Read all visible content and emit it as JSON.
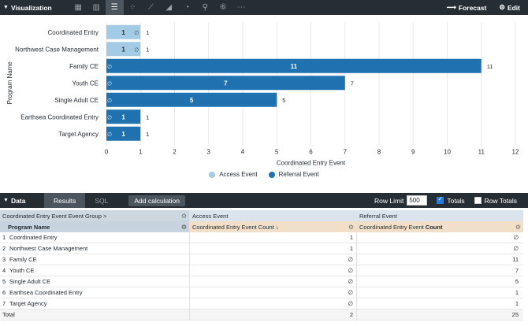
{
  "viz_header": {
    "title": "Visualization",
    "icons": [
      "table-icon",
      "bar-chart-icon",
      "horizontal-bar-icon",
      "scatter-icon",
      "line-icon",
      "area-icon",
      "pie-icon",
      "map-pin-icon",
      "single-value-icon",
      "more-icon"
    ],
    "forecast_label": "Forecast",
    "edit_label": "Edit"
  },
  "chart_data": {
    "type": "bar",
    "orientation": "horizontal",
    "stacked": true,
    "categories": [
      "Coordinated Entry",
      "Northwest Case Management",
      "Family CE",
      "Youth CE",
      "Single Adult CE",
      "Earthsea Coordinated Entry",
      "Target Agency"
    ],
    "series": [
      {
        "name": "Access Event",
        "values": [
          1,
          1,
          0,
          0,
          0,
          0,
          0
        ],
        "color": "#a4cbe6"
      },
      {
        "name": "Referral Event",
        "values": [
          0,
          0,
          11,
          7,
          5,
          1,
          1
        ],
        "color": "#1f71b0"
      }
    ],
    "totals": [
      1,
      1,
      11,
      7,
      5,
      1,
      1
    ],
    "inner_labels": [
      "1",
      "1",
      "11",
      "7",
      "5",
      "1",
      "1"
    ],
    "end_labels": [
      "1",
      "1",
      "11",
      "7",
      "5",
      "1",
      "1"
    ],
    "empty_marker": "∅",
    "xlabel": "Coordinated Entry Event",
    "ylabel": "Program Name",
    "xlim": [
      0,
      12
    ],
    "xticks": [
      "0",
      "1",
      "2",
      "3",
      "4",
      "5",
      "6",
      "7",
      "8",
      "9",
      "10",
      "11",
      "12"
    ],
    "grid": true,
    "legend": "bottom-center"
  },
  "data_header": {
    "title": "Data",
    "tabs": [
      "Results",
      "SQL"
    ],
    "add_calc_label": "Add calculation",
    "row_limit_label": "Row Limit",
    "row_limit_value": "500",
    "totals_label": "Totals",
    "row_totals_label": "Row Totals"
  },
  "table": {
    "group_header": "Coordinated Entry Event Event Group",
    "group_caret": ">",
    "pivot_a": "Access Event",
    "pivot_r": "Referral Event",
    "dim_header": "Program Name",
    "measure_a_header": "Coordinated Entry Event Count ↓",
    "measure_r_header_prefix": "Coordinated Entry Event ",
    "measure_r_header_bold": "Count",
    "rows": [
      {
        "n": "1",
        "name": "Coordinated Entry",
        "a": "1",
        "r": "∅"
      },
      {
        "n": "2",
        "name": "Northwest Case Management",
        "a": "1",
        "r": "∅"
      },
      {
        "n": "3",
        "name": "Family CE",
        "a": "∅",
        "r": "11"
      },
      {
        "n": "4",
        "name": "Youth CE",
        "a": "∅",
        "r": "7"
      },
      {
        "n": "5",
        "name": "Single Adult CE",
        "a": "∅",
        "r": "5"
      },
      {
        "n": "6",
        "name": "Earthsea Coordinated Entry",
        "a": "∅",
        "r": "1"
      },
      {
        "n": "7",
        "name": "Target Agency",
        "a": "∅",
        "r": "1"
      }
    ],
    "total_label": "Total",
    "total_a": "2",
    "total_r": "25"
  }
}
